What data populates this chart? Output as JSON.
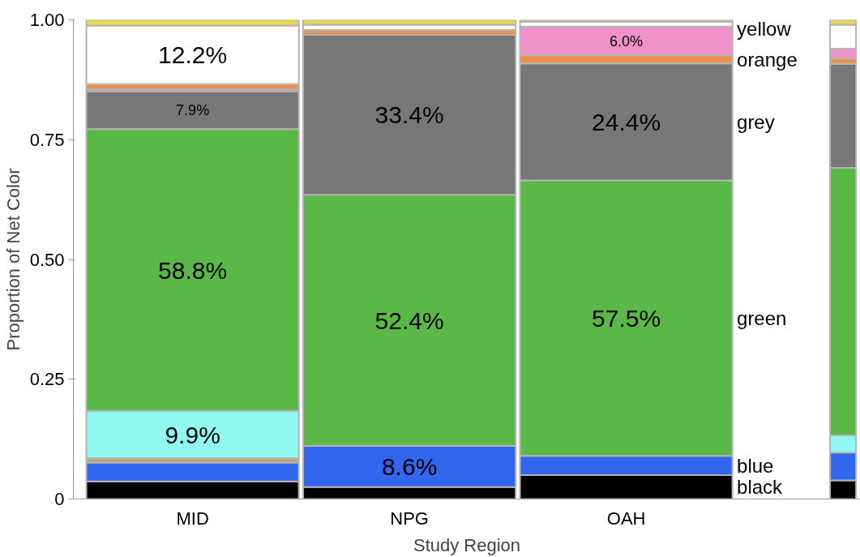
{
  "chart_data": {
    "type": "bar",
    "stacked": true,
    "xlabel": "Study Region",
    "ylabel": "Proportion of Net Color",
    "categories": [
      "MID",
      "NPG",
      "OAH",
      null
    ],
    "ylim": [
      0,
      1
    ],
    "yticks": [
      0,
      0.25,
      {
        "value": 0.5,
        "label": "0.50"
      },
      0.75,
      {
        "value": 1,
        "label": "1.00"
      }
    ],
    "grid": false,
    "legend": "right",
    "series": [
      {
        "name": "black",
        "color": "#000000",
        "values": [
          0.037,
          0.025,
          0.05,
          0.039
        ],
        "value_labels": [
          null,
          null,
          null,
          null
        ]
      },
      {
        "name": "blue",
        "color": "#3366ee",
        "values": [
          0.039,
          0.086,
          0.04,
          0.058
        ],
        "value_labels": [
          null,
          "8.6%",
          null,
          null
        ]
      },
      {
        "color": "#c8a070",
        "values": [
          0.009,
          0,
          0,
          0
        ],
        "value_labels": [
          null,
          null,
          null,
          null
        ]
      },
      {
        "color": "#90f8f0",
        "values": [
          0.099,
          0,
          0,
          0.036
        ],
        "value_labels": [
          "9.9%",
          null,
          null,
          null
        ]
      },
      {
        "name": "green",
        "color": "#5ab946",
        "values": [
          0.588,
          0.524,
          0.575,
          0.558
        ],
        "value_labels": [
          "58.8%",
          "52.4%",
          "57.5%",
          null
        ]
      },
      {
        "name": "grey",
        "color": "#777777",
        "values": [
          0.079,
          0.334,
          0.244,
          0.217
        ],
        "value_labels": [
          "7.9%",
          "33.4%",
          "24.4%",
          null
        ]
      },
      {
        "color": "#e05050",
        "values": [
          0.004,
          0,
          0,
          0
        ],
        "value_labels": [
          null,
          null,
          null,
          null
        ]
      },
      {
        "name": "orange",
        "color": "#f0904a",
        "values": [
          0.011,
          0.01,
          0.017,
          0.012
        ],
        "value_labels": [
          null,
          null,
          null,
          null
        ]
      },
      {
        "color": "#f090c8",
        "values": [
          0,
          0,
          0.06,
          0.02
        ],
        "value_labels": [
          null,
          null,
          "6.0%",
          null
        ]
      },
      {
        "color": "#ffffff",
        "values": [
          0.122,
          0.011,
          0.01,
          0.05
        ],
        "value_labels": [
          "12.2%",
          null,
          null,
          null
        ]
      },
      {
        "name": "yellow",
        "color": "#e8d84a",
        "values": [
          0.012,
          0.01,
          0.004,
          0.01
        ],
        "value_labels": [
          null,
          null,
          null,
          null
        ]
      }
    ]
  }
}
